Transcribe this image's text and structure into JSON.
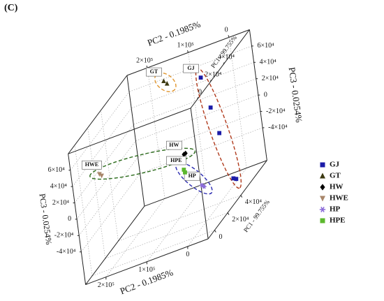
{
  "chart_data": {
    "type": "scatter3d",
    "panel_label": "(C)",
    "xlabel": "PC1 - 99.755%",
    "ylabel": "PC2 - 0.1985%",
    "zlabel": "PC3 - 0.0254%",
    "xlim": [
      -10000,
      80000
    ],
    "ylim": [
      -50000,
      250000
    ],
    "zlim": [
      -80000,
      80000
    ],
    "xticks": [
      0,
      {
        "value": 20000,
        "label": "2×10⁴"
      },
      {
        "value": 40000,
        "label": "4×10⁴"
      }
    ],
    "yticks": [
      0,
      {
        "value": 100000,
        "label": "1×10⁵"
      },
      {
        "value": 200000,
        "label": "2×10⁵"
      }
    ],
    "zticks": [
      {
        "value": -40000,
        "label": "-4×10⁴"
      },
      {
        "value": -20000,
        "label": "-2×10⁴"
      },
      0,
      {
        "value": 20000,
        "label": "2×10⁴"
      },
      {
        "value": 40000,
        "label": "4×10⁴"
      },
      {
        "value": 60000,
        "label": "6×10⁴"
      }
    ],
    "grid": true,
    "legend": "right",
    "series": [
      {
        "name": "GJ",
        "color": "#1c1ca8",
        "marker": "square",
        "ellipse_color": "#b03a1c",
        "x": [
          36200,
          43800,
          50700,
          61200,
          64700
        ],
        "y": [
          0,
          0,
          0,
          0,
          0
        ],
        "z": [
          77400,
          32600,
          -6000,
          -72600,
          -77000
        ]
      },
      {
        "name": "GT",
        "color": "#3d3a12",
        "marker": "triangle",
        "ellipse_color": "#e0952e",
        "x": [
          71000,
          74900
        ],
        "y": [
          150000,
          150000
        ],
        "z": [
          64000,
          56800
        ]
      },
      {
        "name": "HW",
        "color": "#000000",
        "marker": "diamond",
        "ellipse_color": "#2a6a1a",
        "x": [
          28800,
          31200
        ],
        "y": [
          50000,
          50000
        ],
        "z": [
          600,
          -600
        ]
      },
      {
        "name": "HWE",
        "color": "#a8866a",
        "marker": "triangle-down",
        "ellipse_color": "#2a6a1a",
        "x": [
          -700,
          1900
        ],
        "y": [
          200000,
          200000
        ],
        "z": [
          36000,
          31300
        ]
      },
      {
        "name": "HP",
        "color": "#8a6ad8",
        "marker": "star",
        "ellipse_color": "#2c2cb0",
        "x": [
          19000,
          21600
        ],
        "y": [
          0,
          0
        ],
        "z": [
          -36000,
          -40400
        ]
      },
      {
        "name": "HPE",
        "color": "#5cb82e",
        "marker": "square",
        "ellipse_color": "#2c2cb0",
        "x": [
          15000,
          16000
        ],
        "y": [
          30000,
          30000
        ],
        "z": [
          -7100,
          -11500
        ]
      }
    ]
  }
}
